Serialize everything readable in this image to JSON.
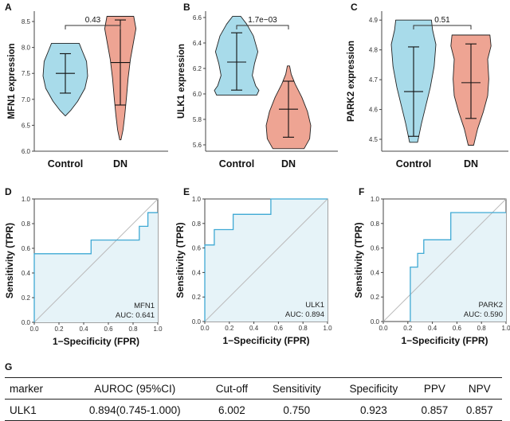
{
  "panels": {
    "violin": [
      {
        "label": "A",
        "ylabel": "MFN1 expression",
        "p_value": "0.43",
        "y_ticks": [
          "6.0",
          "6.5",
          "7.0",
          "7.5",
          "8.0",
          "8.5"
        ],
        "categories": [
          "Control",
          "DN"
        ]
      },
      {
        "label": "B",
        "ylabel": "ULK1 expression",
        "p_value": "1.7e−03",
        "y_ticks": [
          "5.6",
          "5.8",
          "6.0",
          "6.2",
          "6.4",
          "6.6"
        ],
        "categories": [
          "Control",
          "DN"
        ]
      },
      {
        "label": "C",
        "ylabel": "PARK2 expression",
        "p_value": "0.51",
        "y_ticks": [
          "4.5",
          "4.6",
          "4.7",
          "4.8",
          "4.9"
        ],
        "categories": [
          "Control",
          "DN"
        ]
      }
    ],
    "roc": [
      {
        "label": "D",
        "marker": "MFN1",
        "auc_text": "AUC: 0.641",
        "xlabel": "1−Specificity (FPR)",
        "ylabel": "Sensitivity (TPR)",
        "ticks": [
          "0.0",
          "0.2",
          "0.4",
          "0.6",
          "0.8",
          "1.0"
        ]
      },
      {
        "label": "E",
        "marker": "ULK1",
        "auc_text": "AUC: 0.894",
        "xlabel": "1−Specificity (FPR)",
        "ylabel": "Sensitivity (TPR)",
        "ticks": [
          "0.0",
          "0.2",
          "0.4",
          "0.6",
          "0.8",
          "1.0"
        ]
      },
      {
        "label": "F",
        "marker": "PARK2",
        "auc_text": "AUC: 0.590",
        "xlabel": "1−Specificity (FPR)",
        "ylabel": "Sensitivity (TPR)",
        "ticks": [
          "0.0",
          "0.2",
          "0.4",
          "0.6",
          "0.8",
          "1.0"
        ]
      }
    ],
    "table": {
      "label": "G",
      "headers": [
        "marker",
        "AUROC (95%CI)",
        "Cut-off",
        "Sensitivity",
        "Specificity",
        "PPV",
        "NPV"
      ],
      "rows": [
        [
          "ULK1",
          "0.894(0.745-1.000)",
          "6.002",
          "0.750",
          "0.923",
          "0.857",
          "0.857"
        ]
      ]
    }
  },
  "colors": {
    "control": "#a8dbea",
    "dn": "#eea493",
    "roc_line": "#3fa9d4",
    "roc_fill": "#e6f3f8",
    "diag": "#bbbbbb",
    "axis": "#444444"
  },
  "chart_data": [
    {
      "type": "violin",
      "ylabel": "MFN1 expression",
      "categories": [
        "Control",
        "DN"
      ],
      "ylim": [
        6.0,
        8.7
      ],
      "p_value": "0.43",
      "series": [
        {
          "name": "Control",
          "min": 6.68,
          "max": 8.08,
          "mean": 7.5,
          "sd_low": 7.12,
          "sd_high": 7.88
        },
        {
          "name": "DN",
          "min": 6.22,
          "max": 8.6,
          "mean": 7.71,
          "sd_low": 6.89,
          "sd_high": 8.53
        }
      ]
    },
    {
      "type": "violin",
      "ylabel": "ULK1 expression",
      "categories": [
        "Control",
        "DN"
      ],
      "ylim": [
        5.55,
        6.65
      ],
      "p_value": "1.7e−03",
      "series": [
        {
          "name": "Control",
          "min": 5.99,
          "max": 6.61,
          "mean": 6.25,
          "sd_low": 6.03,
          "sd_high": 6.48
        },
        {
          "name": "DN",
          "min": 5.57,
          "max": 6.22,
          "mean": 5.88,
          "sd_low": 5.66,
          "sd_high": 6.1
        }
      ]
    },
    {
      "type": "violin",
      "ylabel": "PARK2 expression",
      "categories": [
        "Control",
        "DN"
      ],
      "ylim": [
        4.46,
        4.93
      ],
      "p_value": "0.51",
      "series": [
        {
          "name": "Control",
          "min": 4.49,
          "max": 4.9,
          "mean": 4.66,
          "sd_low": 4.51,
          "sd_high": 4.81
        },
        {
          "name": "DN",
          "min": 4.48,
          "max": 4.85,
          "mean": 4.69,
          "sd_low": 4.57,
          "sd_high": 4.82
        }
      ]
    },
    {
      "type": "line",
      "marker": "MFN1",
      "auc": 0.641,
      "xlabel": "1−Specificity (FPR)",
      "ylabel": "Sensitivity (TPR)",
      "xlim": [
        0,
        1
      ],
      "ylim": [
        0,
        1
      ],
      "x": [
        0,
        0,
        0.46,
        0.46,
        0.85,
        0.85,
        0.92,
        0.92,
        1.0
      ],
      "y": [
        0,
        0.556,
        0.556,
        0.667,
        0.667,
        0.778,
        0.778,
        0.889,
        0.889
      ]
    },
    {
      "type": "line",
      "marker": "ULK1",
      "auc": 0.894,
      "xlabel": "1−Specificity (FPR)",
      "ylabel": "Sensitivity (TPR)",
      "xlim": [
        0,
        1
      ],
      "ylim": [
        0,
        1
      ],
      "x": [
        0,
        0,
        0.077,
        0.077,
        0.231,
        0.231,
        0.538,
        0.538,
        1.0
      ],
      "y": [
        0,
        0.625,
        0.625,
        0.75,
        0.75,
        0.875,
        0.875,
        1.0,
        1.0
      ]
    },
    {
      "type": "line",
      "marker": "PARK2",
      "auc": 0.59,
      "xlabel": "1−Specificity (FPR)",
      "ylabel": "Sensitivity (TPR)",
      "xlim": [
        0,
        1
      ],
      "ylim": [
        0,
        1
      ],
      "x": [
        0.22,
        0.22,
        0.28,
        0.28,
        0.33,
        0.33,
        0.38,
        0.38,
        0.55,
        0.55,
        1.0
      ],
      "y": [
        0,
        0.444,
        0.444,
        0.556,
        0.556,
        0.667,
        0.667,
        0.667,
        0.667,
        0.889,
        0.889
      ]
    }
  ]
}
